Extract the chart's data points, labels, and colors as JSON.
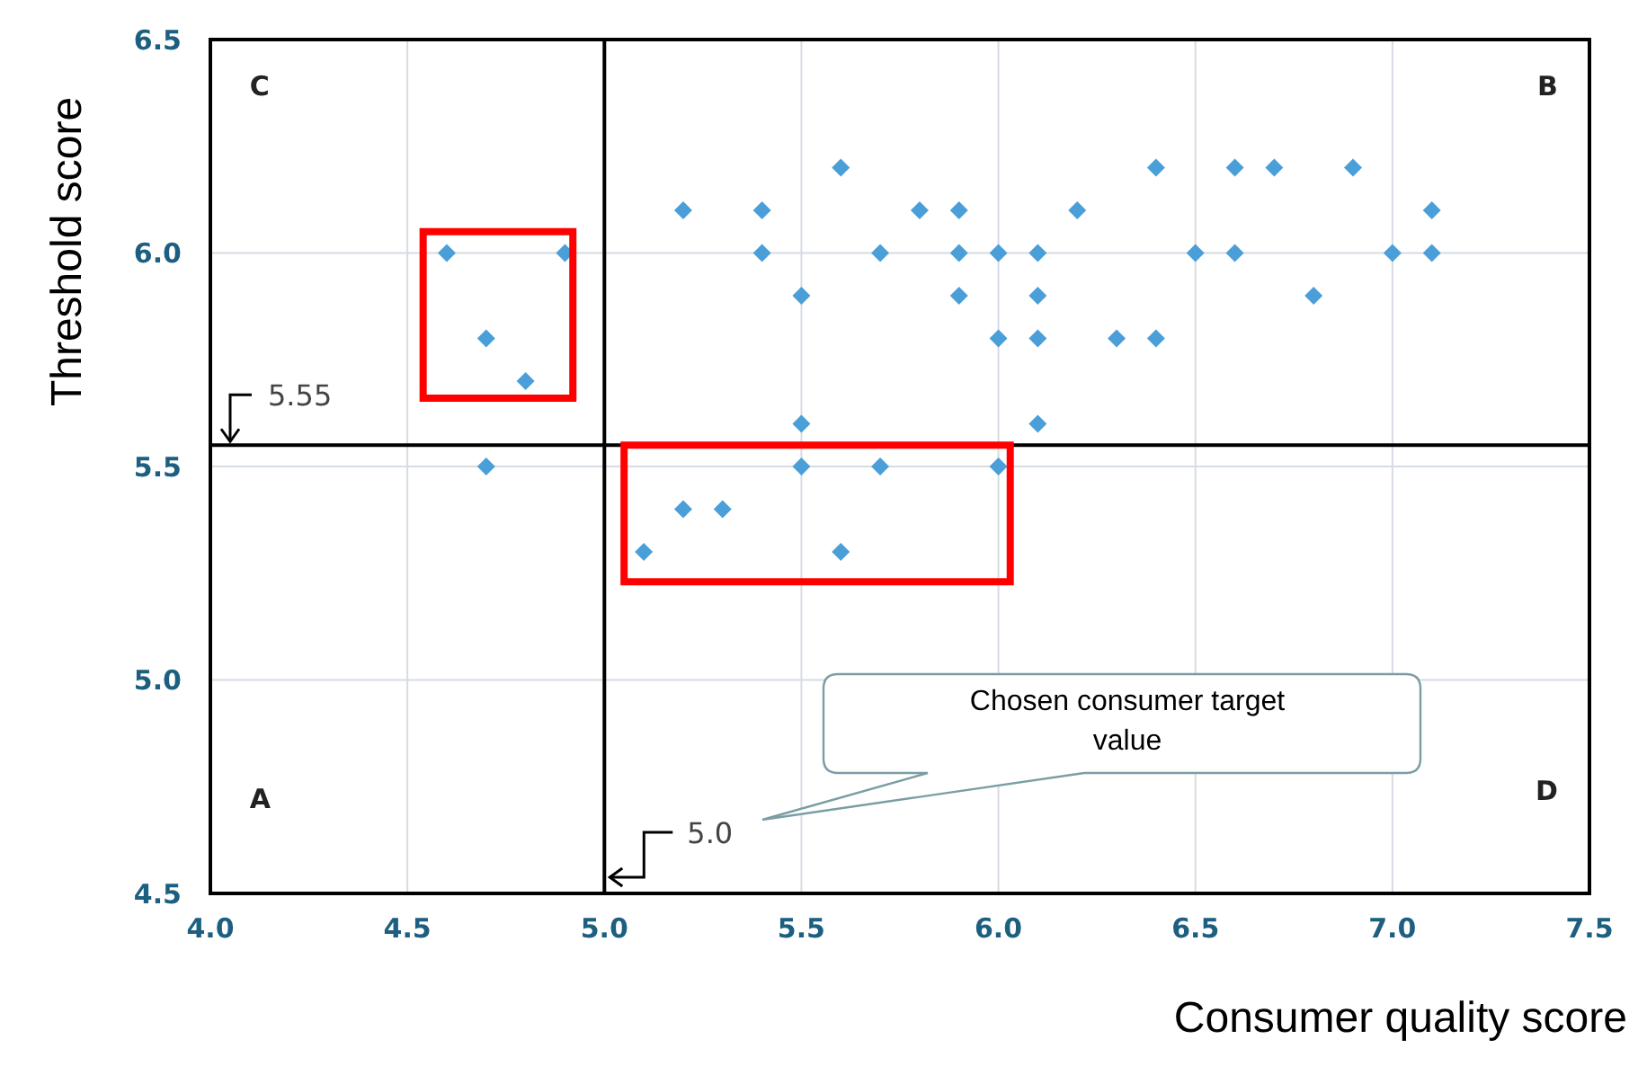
{
  "chart_data": {
    "type": "scatter",
    "xlabel": "Consumer quality score",
    "ylabel": "Threshold score",
    "x": [
      4.6,
      4.9,
      4.7,
      4.8,
      4.7,
      5.2,
      5.4,
      5.4,
      5.6,
      5.5,
      5.7,
      5.5,
      5.5,
      5.7,
      5.2,
      5.3,
      5.1,
      5.6,
      5.8,
      5.9,
      6.2,
      6.4,
      6.6,
      6.7,
      6.9,
      7.1,
      5.9,
      6.0,
      6.1,
      6.5,
      6.6,
      7.0,
      7.1,
      5.9,
      6.1,
      6.8,
      6.0,
      6.1,
      6.3,
      6.4,
      6.1,
      6.0
    ],
    "values": [
      6.0,
      6.0,
      5.8,
      5.7,
      5.5,
      6.1,
      6.1,
      6.0,
      6.2,
      5.9,
      6.0,
      5.6,
      5.5,
      5.5,
      5.4,
      5.4,
      5.3,
      5.3,
      6.1,
      6.1,
      6.1,
      6.2,
      6.2,
      6.2,
      6.2,
      6.1,
      6.0,
      6.0,
      6.0,
      6.0,
      6.0,
      6.0,
      6.0,
      5.9,
      5.9,
      5.9,
      5.8,
      5.8,
      5.8,
      5.8,
      5.6,
      5.5
    ],
    "color": "#4a9fd8",
    "marker": "diamond",
    "xlim": [
      4.0,
      7.5
    ],
    "xticks": [
      {
        "value": 4.0,
        "label": "4.0"
      },
      4.5,
      {
        "value": 5.0,
        "label": "5.0"
      },
      5.5,
      {
        "value": 6.0,
        "label": "6.0"
      },
      6.5,
      {
        "value": 7.0,
        "label": "7.0"
      },
      7.5
    ],
    "ylim": [
      4.5,
      6.5
    ],
    "yticks": [
      4.5,
      {
        "value": 5.0,
        "label": "5.0"
      },
      5.5,
      {
        "value": 6.0,
        "label": "6.0"
      },
      6.5
    ],
    "grid": true,
    "ref_lines": [
      {
        "axis": "y",
        "value": 5.55,
        "label": "5.55",
        "color": "#000000"
      },
      {
        "axis": "x",
        "value": 5.0,
        "label": "5.0",
        "color": "#000000"
      }
    ],
    "annotations": [
      "C",
      "B",
      "A",
      "D",
      "Chosen consumer target value"
    ]
  }
}
